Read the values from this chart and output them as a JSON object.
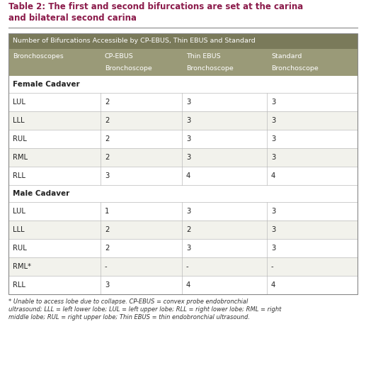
{
  "title_line1": "Table 2: The first and second bifurcations are set at the carina",
  "title_line2": "and bilateral second carina",
  "title_color": "#8B1A4A",
  "header_bg": "#7A7A5A",
  "header_text_color": "#FFFFFF",
  "subheader_bg": "#9A9A78",
  "subheader_text_color": "#FFFFFF",
  "table_header_text": "Number of Bifurcations Accessible by CP-EBUS, Thin EBUS and Standard",
  "col_headers_line1": [
    "Bronchoscopes",
    "CP-EBUS",
    "Thin EBUS",
    "Standard"
  ],
  "col_headers_line2": [
    "",
    "Bronchoscope",
    "Bronchoscope",
    "Bronchoscope"
  ],
  "section1_label": "Female Cadaver",
  "section2_label": "Male Cadaver",
  "female_rows": [
    [
      "LUL",
      "2",
      "3",
      "3"
    ],
    [
      "LLL",
      "2",
      "3",
      "3"
    ],
    [
      "RUL",
      "2",
      "3",
      "3"
    ],
    [
      "RML",
      "2",
      "3",
      "3"
    ],
    [
      "RLL",
      "3",
      "4",
      "4"
    ]
  ],
  "male_rows": [
    [
      "LUL",
      "1",
      "3",
      "3"
    ],
    [
      "LLL",
      "2",
      "2",
      "3"
    ],
    [
      "RUL",
      "2",
      "3",
      "3"
    ],
    [
      "RML*",
      "-",
      "-",
      "-"
    ],
    [
      "RLL",
      "3",
      "4",
      "4"
    ]
  ],
  "footnote_line1": "* Unable to access lobe due to collapse. CP-EBUS = convex probe endobronchial",
  "footnote_line2": "ultrasound; LLL = left lower lobe; LUL = left upper lobe; RLL = right lower lobe; RML = right",
  "footnote_line3": "middle lobe; RUL = right upper lobe; Thin EBUS = thin endobronchial ultrasound.",
  "bg_color": "#FFFFFF",
  "row_white": "#FFFFFF",
  "row_light": "#F2F2EC",
  "grid_color": "#BBBBBB",
  "text_color": "#222222",
  "footnote_color": "#333333"
}
